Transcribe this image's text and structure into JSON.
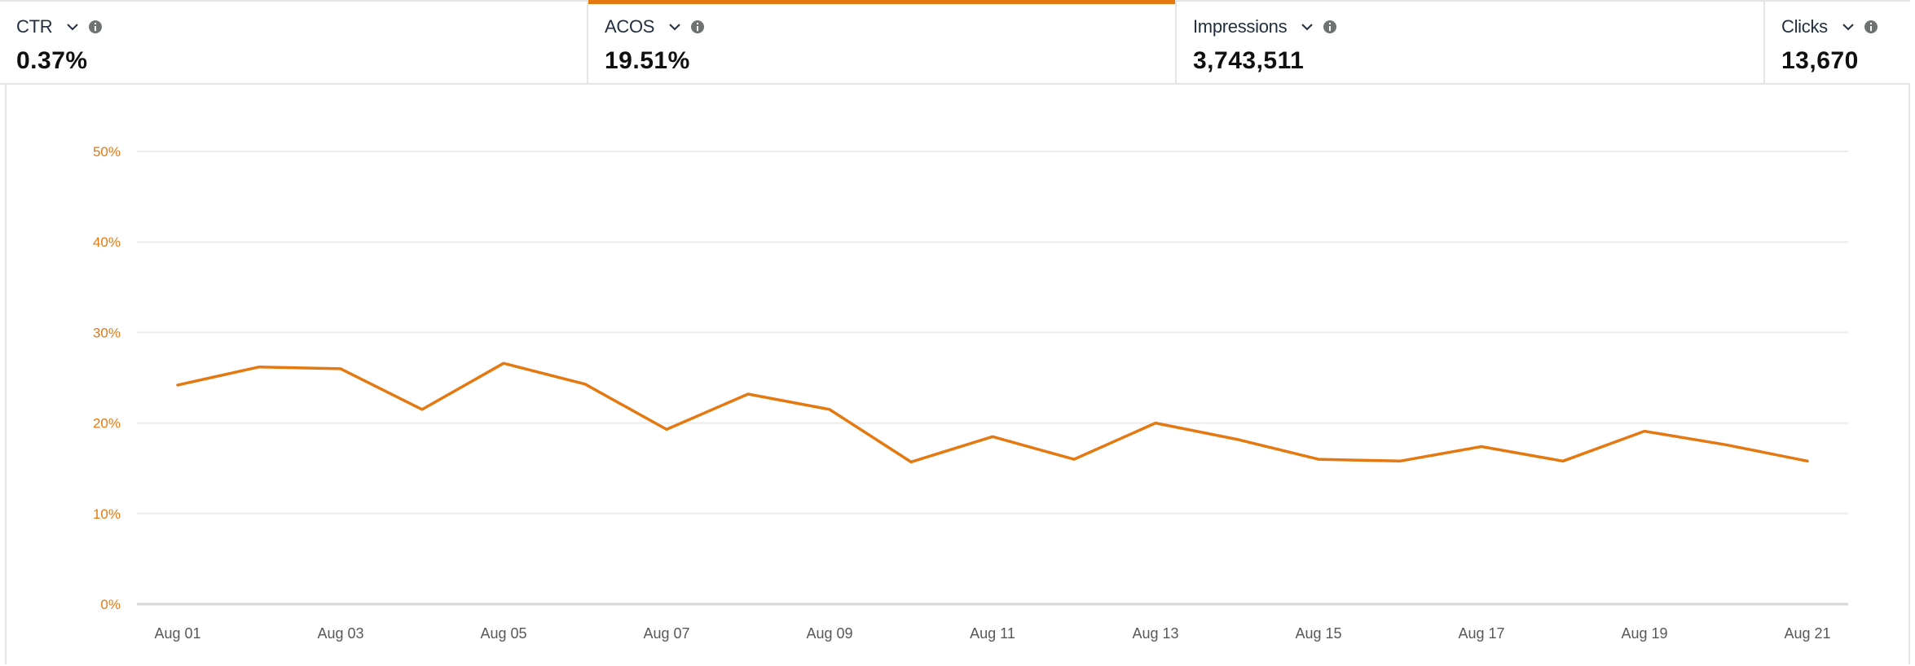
{
  "metrics": [
    {
      "label": "CTR",
      "value": "0.37%",
      "selected": false
    },
    {
      "label": "ACOS",
      "value": "19.51%",
      "selected": true
    },
    {
      "label": "Impressions",
      "value": "3,743,511",
      "selected": false
    },
    {
      "label": "Clicks",
      "value": "13,670",
      "selected": false
    }
  ],
  "icons": {
    "dropdown": "chevron-down-icon",
    "info": "info-icon"
  },
  "colors": {
    "accent": "#e47911",
    "grid": "#eaeded",
    "axis": "#d5d9d9"
  },
  "chart_data": {
    "type": "line",
    "series": [
      {
        "values": [
          24.2,
          26.2,
          26.0,
          21.5,
          26.6,
          24.3,
          19.3,
          23.2,
          21.5,
          15.7,
          18.5,
          16.0,
          20.0,
          18.2,
          16.0,
          15.8,
          17.4,
          15.8,
          19.1,
          17.6,
          15.8
        ]
      }
    ],
    "x": [
      "Aug 01",
      "Aug 02",
      "Aug 03",
      "Aug 04",
      "Aug 05",
      "Aug 06",
      "Aug 07",
      "Aug 08",
      "Aug 09",
      "Aug 10",
      "Aug 11",
      "Aug 12",
      "Aug 13",
      "Aug 14",
      "Aug 15",
      "Aug 16",
      "Aug 17",
      "Aug 18",
      "Aug 19",
      "Aug 20",
      "Aug 21"
    ],
    "x_tick_labels": [
      "Aug 01",
      "Aug 03",
      "Aug 05",
      "Aug 07",
      "Aug 09",
      "Aug 11",
      "Aug 13",
      "Aug 15",
      "Aug 17",
      "Aug 19",
      "Aug 21"
    ],
    "y_tick_labels": [
      "0%",
      "10%",
      "20%",
      "30%",
      "40%",
      "50%"
    ],
    "ylim": [
      0,
      50
    ],
    "grid": true,
    "color": "#e47911"
  }
}
